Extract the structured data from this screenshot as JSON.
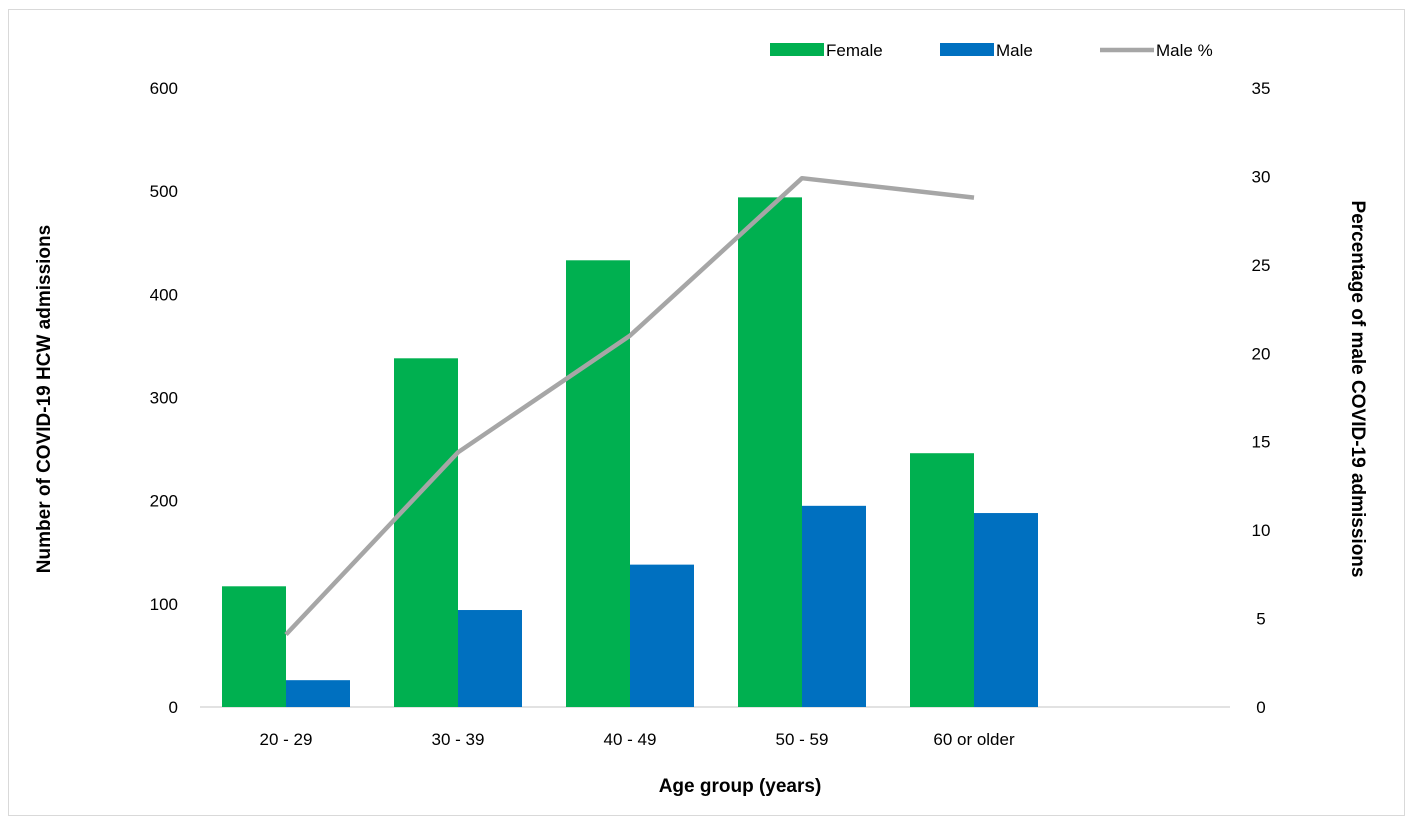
{
  "chart_data": {
    "type": "bar",
    "categories": [
      "20 - 29",
      "30 - 39",
      "40 - 49",
      "50 - 59",
      "60 or older"
    ],
    "series": [
      {
        "name": "Female",
        "type": "bar",
        "axis": "left",
        "color": "#00b050",
        "values": [
          117,
          338,
          433,
          494,
          246
        ]
      },
      {
        "name": "Male",
        "type": "bar",
        "axis": "left",
        "color": "#0070c0",
        "values": [
          26,
          94,
          138,
          195,
          188
        ]
      },
      {
        "name": "Male %",
        "type": "line",
        "axis": "right",
        "color": "#a6a6a6",
        "values": [
          4.1,
          14.4,
          21.0,
          29.9,
          28.8
        ]
      }
    ],
    "xlabel": "Age group (years)",
    "ylabel": "Number of COVID-19 HCW admissions",
    "y2label": "Percentage of male COVID-19 admissions",
    "ylim": [
      0,
      600
    ],
    "y2lim": [
      0,
      35
    ],
    "yticks": [
      "0",
      "100",
      "200",
      "300",
      "400",
      "500",
      "600"
    ],
    "y2ticks": [
      "0",
      "5",
      "10",
      "15",
      "20",
      "25",
      "30",
      "35"
    ],
    "grid": false,
    "legend_position": "top-right"
  }
}
